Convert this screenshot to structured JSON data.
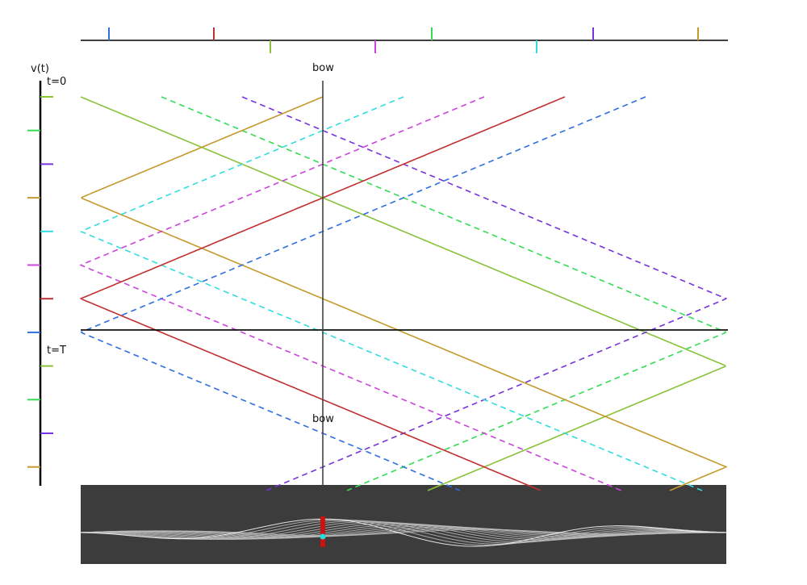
{
  "labels": {
    "velocity": "v(t)",
    "time_start": "t=0",
    "time_period": "t=T",
    "bow_top": "bow",
    "bow_bottom": "bow"
  },
  "colors": {
    "background": "#ffffff",
    "axis": "#000000",
    "bow_line": "#444444",
    "string_panel": "#3c3c3c",
    "string_line": "#ffffff",
    "bow_marker": "#cc1111",
    "bow_contact": "#22dddd",
    "palette": [
      "#2f6fe0",
      "#c03030",
      "#88c33a",
      "#cc44dd",
      "#33dd55",
      "#33dddd",
      "#7733dd",
      "#c49a2c"
    ]
  },
  "diagram": {
    "string_segments": 8,
    "bow_position_segment": 3,
    "top_ticks": [
      {
        "pos": 0.35,
        "dir": "up",
        "color": 0
      },
      {
        "pos": 1.65,
        "dir": "up",
        "color": 1
      },
      {
        "pos": 2.35,
        "dir": "down",
        "color": 2
      },
      {
        "pos": 3.65,
        "dir": "down",
        "color": 3
      },
      {
        "pos": 4.35,
        "dir": "up",
        "color": 4
      },
      {
        "pos": 5.65,
        "dir": "down",
        "color": 5
      },
      {
        "pos": 6.35,
        "dir": "up",
        "color": 6
      },
      {
        "pos": 7.65,
        "dir": "up",
        "color": 7
      }
    ],
    "waves": [
      {
        "color": 2,
        "start": 0.0,
        "dir": 1,
        "solid": true
      },
      {
        "color": 4,
        "start": 1.0,
        "dir": 1,
        "solid": false
      },
      {
        "color": 6,
        "start": 2.0,
        "dir": 1,
        "solid": false
      },
      {
        "color": 7,
        "start": 3.0,
        "dir": -1,
        "solid": true
      },
      {
        "color": 5,
        "start": 4.0,
        "dir": -1,
        "solid": false
      },
      {
        "color": 3,
        "start": 5.0,
        "dir": -1,
        "solid": false
      },
      {
        "color": 1,
        "start": 6.0,
        "dir": -1,
        "solid": true
      },
      {
        "color": 0,
        "start": 7.0,
        "dir": -1,
        "solid": false
      }
    ],
    "period_steps": 7,
    "total_steps": 11.7,
    "velocity_ticks": [
      {
        "step": 0,
        "color": 2
      },
      {
        "step": 1,
        "color": 4
      },
      {
        "step": 2,
        "color": 6
      },
      {
        "step": 3,
        "color": 7
      },
      {
        "step": 4,
        "color": 5
      },
      {
        "step": 5,
        "color": 3
      },
      {
        "step": 6,
        "color": 1
      },
      {
        "step": 7,
        "color": 0
      },
      {
        "step": 8,
        "color": 2
      },
      {
        "step": 9,
        "color": 4
      },
      {
        "step": 10,
        "color": 6
      },
      {
        "step": 11,
        "color": 7
      }
    ]
  }
}
